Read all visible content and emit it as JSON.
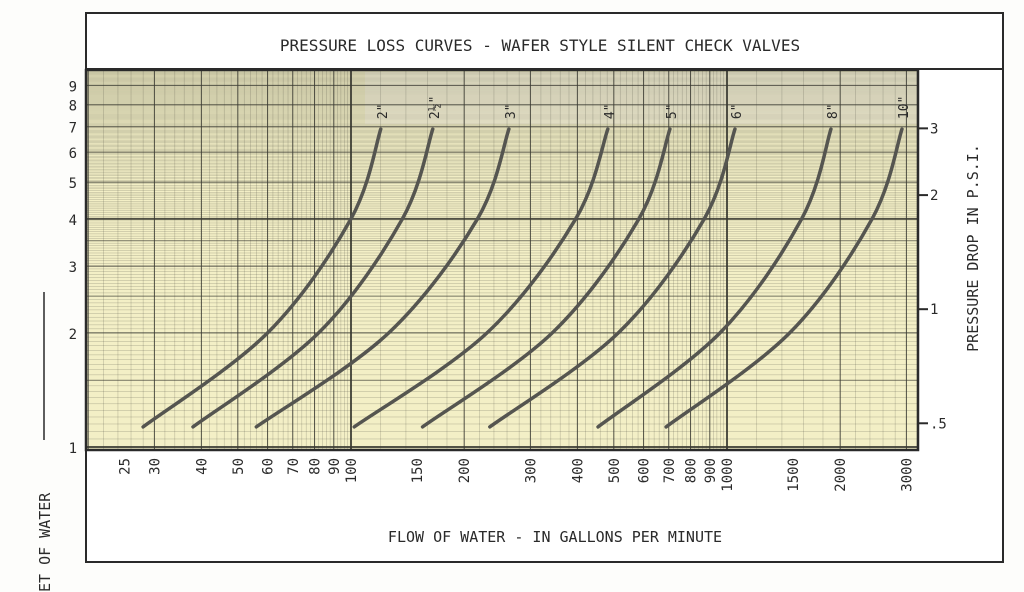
{
  "chart_data": {
    "type": "line",
    "title": "PRESSURE LOSS CURVES - WAFER STYLE SILENT CHECK VALVES",
    "xlabel": "FLOW OF WATER - IN GALLONS PER MINUTE",
    "ylabel_left": "ET OF WATER",
    "ylabel_right": "PRESSURE DROP IN P.S.I.",
    "x_scale": "log",
    "y_scale": "log",
    "xlim": [
      20,
      3200
    ],
    "ylim": [
      1,
      10
    ],
    "grid": true,
    "x_ticks": [
      "25",
      "30",
      "40",
      "50",
      "60",
      "70",
      "80",
      "90",
      "100",
      "150",
      "200",
      "300",
      "400",
      "500",
      "600",
      "700",
      "800",
      "900",
      "1000",
      "1500",
      "2000",
      "3000"
    ],
    "y_ticks_left": [
      "1",
      "2",
      "3",
      "4",
      "5",
      "6",
      "7",
      "8",
      "9"
    ],
    "y_ticks_right": [
      {
        "label": "3",
        "psi": 3
      },
      {
        "label": "2",
        "psi": 2
      },
      {
        "label": "1",
        "psi": 1
      },
      {
        "label": ".5",
        "psi": 0.5
      }
    ],
    "series": [
      {
        "name": "2\"",
        "points": [
          [
            28,
            1.13
          ],
          [
            60,
            2
          ],
          [
            100,
            4
          ],
          [
            120,
            6.9
          ]
        ]
      },
      {
        "name": "2½\"",
        "points": [
          [
            38,
            1.13
          ],
          [
            82,
            2
          ],
          [
            137,
            4
          ],
          [
            165,
            6.9
          ]
        ]
      },
      {
        "name": "3\"",
        "points": [
          [
            56,
            1.13
          ],
          [
            126,
            2
          ],
          [
            217,
            4
          ],
          [
            263,
            6.9
          ]
        ]
      },
      {
        "name": "4\"",
        "points": [
          [
            102,
            1.13
          ],
          [
            230,
            2
          ],
          [
            396,
            4
          ],
          [
            482,
            6.9
          ]
        ]
      },
      {
        "name": "5\"",
        "points": [
          [
            155,
            1.13
          ],
          [
            343,
            2
          ],
          [
            583,
            4
          ],
          [
            705,
            6.9
          ]
        ]
      },
      {
        "name": "6\"",
        "points": [
          [
            234,
            1.13
          ],
          [
            514,
            2
          ],
          [
            870,
            4
          ],
          [
            1050,
            6.9
          ]
        ]
      },
      {
        "name": "8\"",
        "points": [
          [
            454,
            1.13
          ],
          [
            958,
            2
          ],
          [
            1580,
            4
          ],
          [
            1890,
            6.9
          ]
        ]
      },
      {
        "name": "10\"",
        "points": [
          [
            689,
            1.13
          ],
          [
            1468,
            2
          ],
          [
            2432,
            4
          ],
          [
            2920,
            6.9
          ]
        ]
      }
    ],
    "colors": {
      "paper": "#f3efc6",
      "label_strip": "#f7f3d6",
      "grid": "#3a3a32",
      "curve": "#555550"
    }
  }
}
